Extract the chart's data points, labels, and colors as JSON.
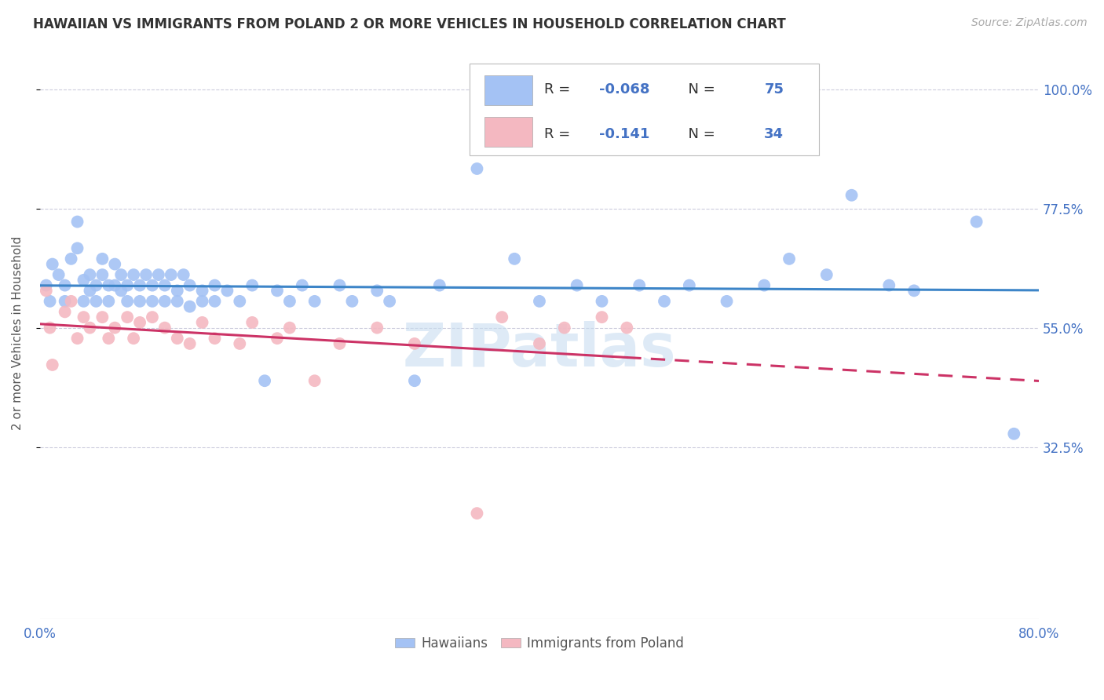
{
  "title": "HAWAIIAN VS IMMIGRANTS FROM POLAND 2 OR MORE VEHICLES IN HOUSEHOLD CORRELATION CHART",
  "source": "Source: ZipAtlas.com",
  "ylabel": "2 or more Vehicles in Household",
  "ytick_labels": [
    "100.0%",
    "77.5%",
    "55.0%",
    "32.5%"
  ],
  "ytick_values": [
    1.0,
    0.775,
    0.55,
    0.325
  ],
  "xlim": [
    0.0,
    0.8
  ],
  "ylim": [
    0.0,
    1.08
  ],
  "legend_labels": [
    "Hawaiians",
    "Immigrants from Poland"
  ],
  "r_hawaiian": -0.068,
  "n_hawaiian": 75,
  "r_poland": -0.141,
  "n_poland": 34,
  "blue_scatter_color": "#a4c2f4",
  "pink_scatter_color": "#f4b8c1",
  "trend_blue": "#3d85c8",
  "trend_pink": "#cc3366",
  "watermark": "ZIPatlas",
  "hawaiian_x": [
    0.005,
    0.008,
    0.01,
    0.015,
    0.02,
    0.02,
    0.025,
    0.03,
    0.03,
    0.035,
    0.035,
    0.04,
    0.04,
    0.045,
    0.045,
    0.05,
    0.05,
    0.055,
    0.055,
    0.06,
    0.06,
    0.065,
    0.065,
    0.07,
    0.07,
    0.075,
    0.08,
    0.08,
    0.085,
    0.09,
    0.09,
    0.095,
    0.1,
    0.1,
    0.105,
    0.11,
    0.11,
    0.115,
    0.12,
    0.12,
    0.13,
    0.13,
    0.14,
    0.14,
    0.15,
    0.16,
    0.17,
    0.18,
    0.19,
    0.2,
    0.21,
    0.22,
    0.24,
    0.25,
    0.27,
    0.28,
    0.3,
    0.32,
    0.35,
    0.38,
    0.4,
    0.43,
    0.45,
    0.48,
    0.5,
    0.52,
    0.55,
    0.58,
    0.6,
    0.63,
    0.65,
    0.68,
    0.7,
    0.75,
    0.78
  ],
  "hawaiian_y": [
    0.63,
    0.6,
    0.67,
    0.65,
    0.63,
    0.6,
    0.68,
    0.75,
    0.7,
    0.64,
    0.6,
    0.65,
    0.62,
    0.63,
    0.6,
    0.68,
    0.65,
    0.63,
    0.6,
    0.67,
    0.63,
    0.65,
    0.62,
    0.63,
    0.6,
    0.65,
    0.63,
    0.6,
    0.65,
    0.63,
    0.6,
    0.65,
    0.63,
    0.6,
    0.65,
    0.62,
    0.6,
    0.65,
    0.63,
    0.59,
    0.62,
    0.6,
    0.63,
    0.6,
    0.62,
    0.6,
    0.63,
    0.45,
    0.62,
    0.6,
    0.63,
    0.6,
    0.63,
    0.6,
    0.62,
    0.6,
    0.45,
    0.63,
    0.85,
    0.68,
    0.6,
    0.63,
    0.6,
    0.63,
    0.6,
    0.63,
    0.6,
    0.63,
    0.68,
    0.65,
    0.8,
    0.63,
    0.62,
    0.75,
    0.35
  ],
  "poland_x": [
    0.005,
    0.008,
    0.01,
    0.02,
    0.025,
    0.03,
    0.035,
    0.04,
    0.05,
    0.055,
    0.06,
    0.07,
    0.075,
    0.08,
    0.09,
    0.1,
    0.11,
    0.12,
    0.13,
    0.14,
    0.16,
    0.17,
    0.19,
    0.2,
    0.22,
    0.24,
    0.27,
    0.3,
    0.35,
    0.37,
    0.4,
    0.42,
    0.45,
    0.47
  ],
  "poland_y": [
    0.62,
    0.55,
    0.48,
    0.58,
    0.6,
    0.53,
    0.57,
    0.55,
    0.57,
    0.53,
    0.55,
    0.57,
    0.53,
    0.56,
    0.57,
    0.55,
    0.53,
    0.52,
    0.56,
    0.53,
    0.52,
    0.56,
    0.53,
    0.55,
    0.45,
    0.52,
    0.55,
    0.52,
    0.2,
    0.57,
    0.52,
    0.55,
    0.57,
    0.55
  ]
}
